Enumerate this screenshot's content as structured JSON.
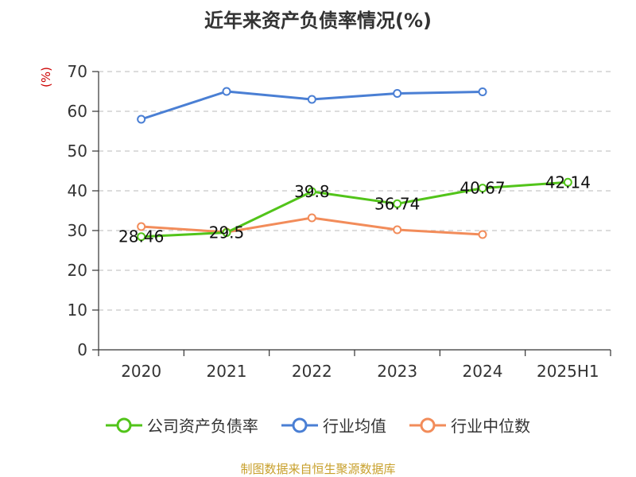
{
  "chart_data": {
    "type": "line",
    "title": "近年来资产负债率情况(%)",
    "ylabel": "(%)",
    "xlabel": "",
    "categories": [
      "2020",
      "2021",
      "2022",
      "2023",
      "2024",
      "2025H1"
    ],
    "ylim": [
      0,
      70
    ],
    "yticks": [
      0,
      10,
      20,
      30,
      40,
      50,
      60,
      70
    ],
    "grid": true,
    "legend_position": "bottom",
    "series": [
      {
        "name": "公司资产负债率",
        "color": "#52c41a",
        "values": [
          28.46,
          29.5,
          39.8,
          36.74,
          40.67,
          42.14
        ],
        "labels": [
          "28.46",
          "29.5",
          "39.8",
          "36.74",
          "40.67",
          "42.14"
        ]
      },
      {
        "name": "行业均值",
        "color": "#4a7fd4",
        "values": [
          58.0,
          65.0,
          63.0,
          64.5,
          64.9,
          null
        ]
      },
      {
        "name": "行业中位数",
        "color": "#f28c5a",
        "values": [
          31.0,
          29.6,
          33.2,
          30.2,
          29.0,
          null
        ]
      }
    ]
  },
  "source": "制图数据来自恒生聚源数据库"
}
